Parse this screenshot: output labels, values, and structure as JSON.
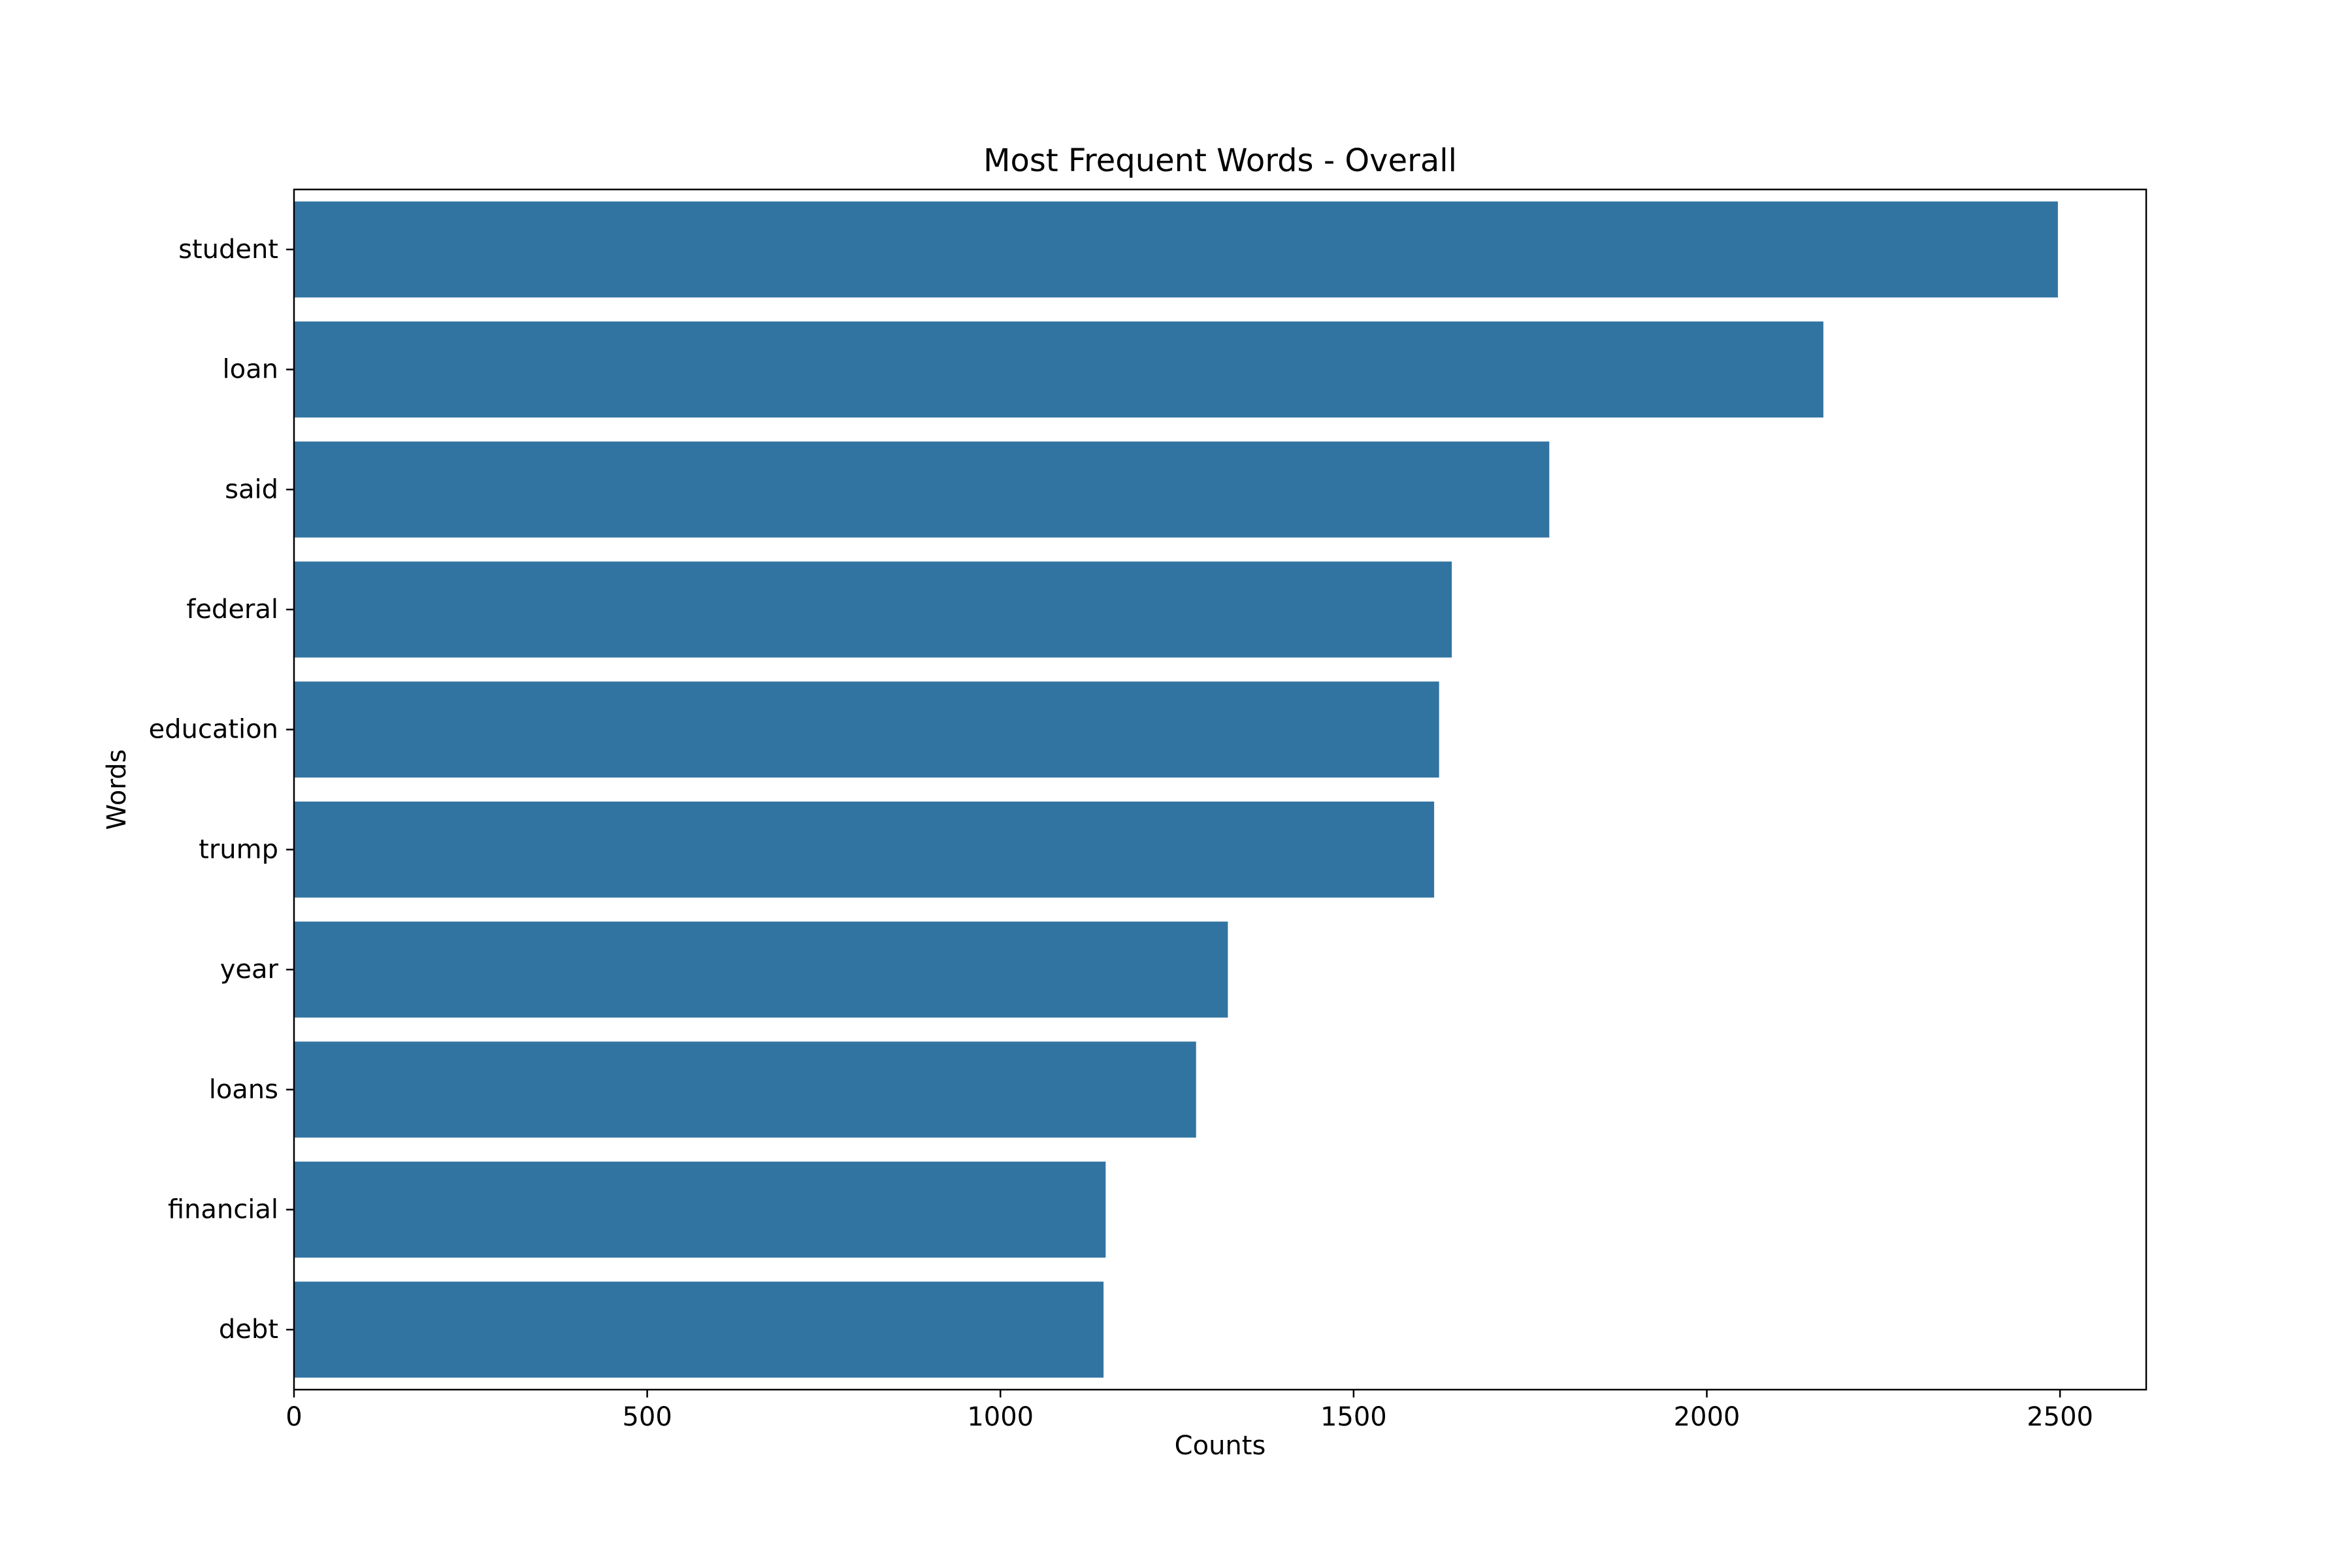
{
  "chart_data": {
    "type": "bar",
    "orientation": "horizontal",
    "title": "Most Frequent Words - Overall",
    "xlabel": "Counts",
    "ylabel": "Words",
    "categories": [
      "student",
      "loan",
      "said",
      "federal",
      "education",
      "trump",
      "year",
      "loans",
      "financial",
      "debt"
    ],
    "values": [
      2497,
      2165,
      1777,
      1639,
      1621,
      1614,
      1322,
      1277,
      1149,
      1146
    ],
    "xlim": [
      0,
      2622
    ],
    "xticks": [
      0,
      500,
      1000,
      1500,
      2000,
      2500
    ],
    "xtick_labels": [
      "0",
      "500",
      "1000",
      "1500",
      "2000",
      "2500"
    ],
    "grid": false,
    "legend": "none",
    "bar_color": "#3274a1"
  }
}
